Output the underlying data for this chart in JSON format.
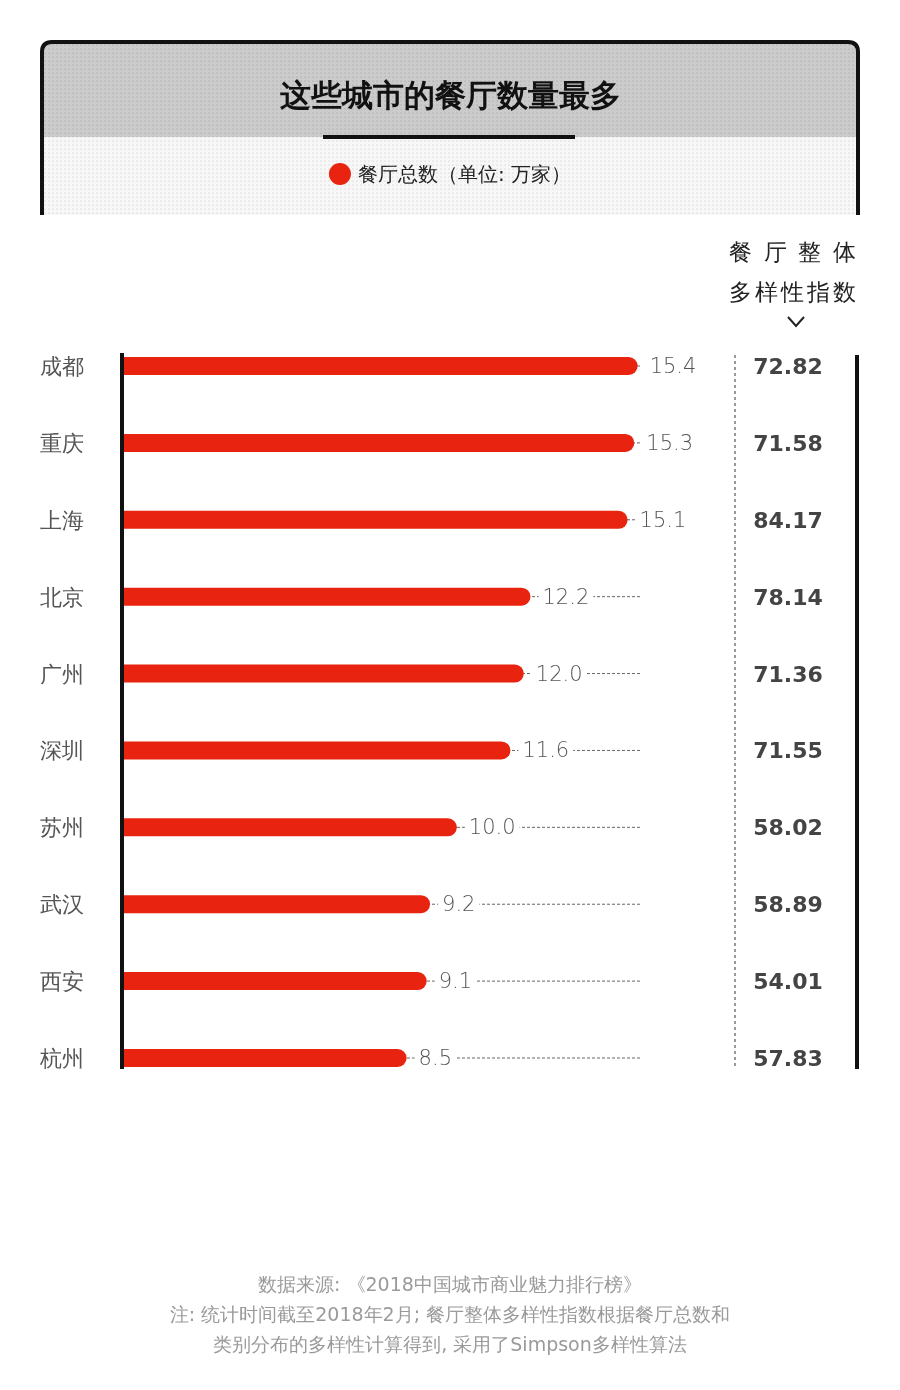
{
  "chart_data": {
    "type": "bar",
    "orientation": "horizontal",
    "title": "这些城市的餐厅数量最多",
    "categories": [
      "成都",
      "重庆",
      "上海",
      "北京",
      "广州",
      "深圳",
      "苏州",
      "武汉",
      "西安",
      "杭州"
    ],
    "series": [
      {
        "name": "餐厅总数（单位: 万家）",
        "color": "#e8230f",
        "values": [
          15.4,
          15.3,
          15.1,
          12.2,
          12.0,
          11.6,
          10.0,
          9.2,
          9.1,
          8.5
        ],
        "value_labels": [
          "15.4",
          "15.3",
          "15.1",
          "12.2",
          "12.0",
          "11.6",
          "10.0",
          "9.2",
          "9.1",
          "8.5"
        ]
      }
    ],
    "xlim": [
      0,
      15.5
    ],
    "grid": "y",
    "legend": "top",
    "tick_labels": "y",
    "annotations": [
      "餐厅整体多样性指数",
      "72.82",
      "71.58",
      "84.17",
      "78.14",
      "71.36",
      "71.55",
      "58.02",
      "58.89",
      "54.01",
      "57.83",
      "数据来源: 《2018中国城市商业魅力排行榜》",
      "注: 统计时间截至2018年2月; 餐厅整体多样性指数根据餐厅总数和类别分布的多样性计算得到, 采用了Simpson多样性算法"
    ]
  }
}
